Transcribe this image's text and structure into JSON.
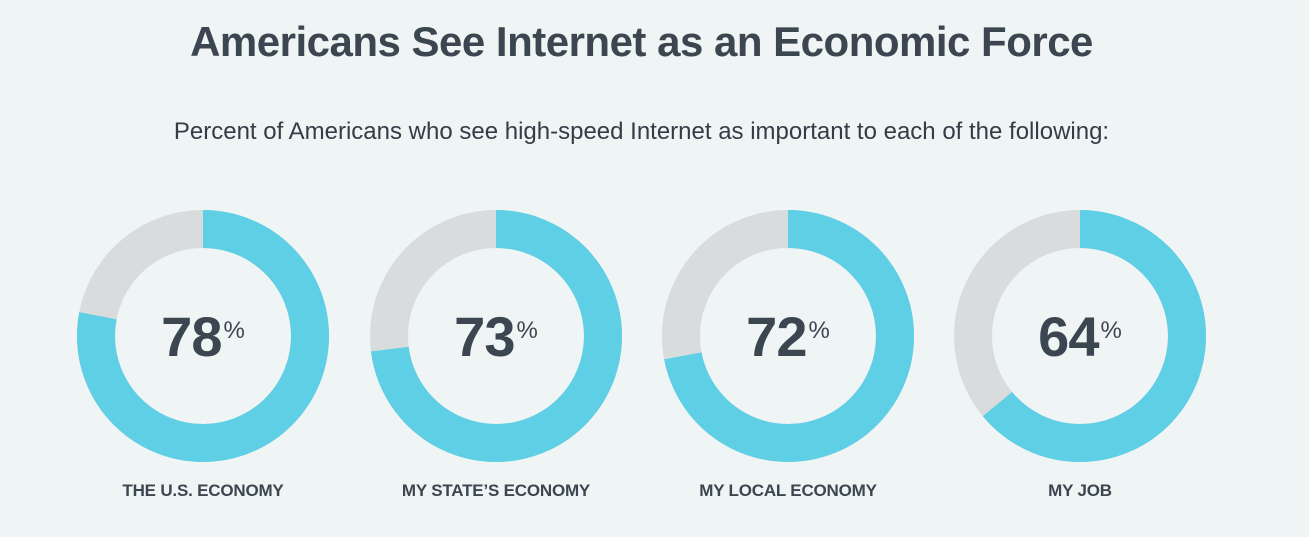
{
  "title": "Americans See Internet as an Economic Force",
  "subtitle": "Percent of Americans who see high-speed Internet as important to each of the following:",
  "colors": {
    "filled": "#5ecfe5",
    "remaining": "#d8dcdd",
    "text": "#3b4650",
    "background": "#eff4f4"
  },
  "chart_data": {
    "type": "pie",
    "subtype": "donut",
    "title": "Americans See Internet as an Economic Force",
    "subtitle": "Percent of Americans who see high-speed Internet as important to each of the following:",
    "categories": [
      "THE U.S. ECONOMY",
      "MY STATE’S ECONOMY",
      "MY LOCAL ECONOMY",
      "MY JOB"
    ],
    "values": [
      78,
      73,
      72,
      64
    ],
    "value_labels": [
      "78",
      "73",
      "72",
      "64"
    ],
    "unit": "%"
  }
}
